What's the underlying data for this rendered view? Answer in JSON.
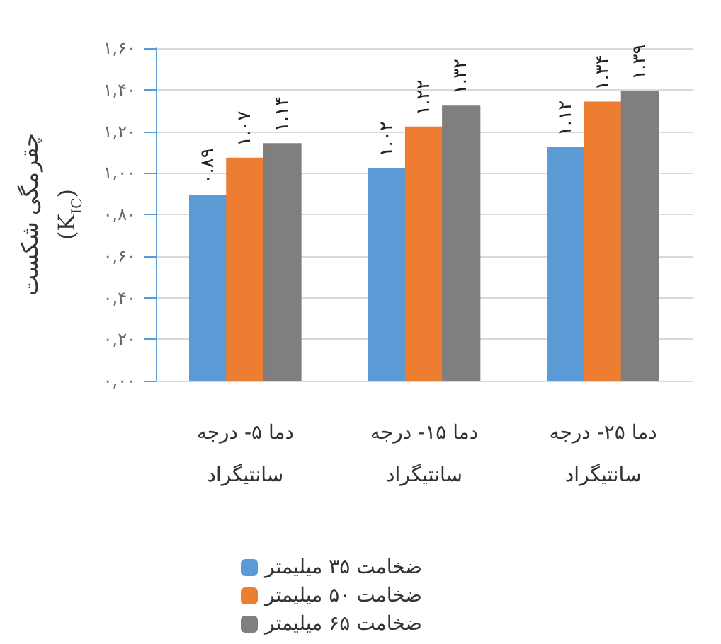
{
  "chart_data": {
    "type": "bar",
    "ylabel": "چقرمگی شکست\n(K$_{IC}$)",
    "categories": [
      "دما ۵- درجه سانتیگراد",
      "دما ۱۵- درجه سانتیگراد",
      "دما ۲۵- درجه سانتیگراد"
    ],
    "series": [
      {
        "name": "ضخامت ۳۵ میلیمتر",
        "color": "#5b9bd5",
        "values": [
          0.89,
          1.02,
          1.12
        ],
        "value_labels": [
          "۰.۸۹",
          "۱.۰۲",
          "۱.۱۲"
        ]
      },
      {
        "name": "ضخامت ۵۰ میلیمتر",
        "color": "#ed7d31",
        "values": [
          1.07,
          1.22,
          1.34
        ],
        "value_labels": [
          "۱.۰۷",
          "۱.۲۲",
          "۱.۳۴"
        ]
      },
      {
        "name": "ضخامت ۶۵ میلیمتر",
        "color": "#7f7f7f",
        "values": [
          1.14,
          1.32,
          1.39
        ],
        "value_labels": [
          "۱.۱۴",
          "۱.۳۲",
          "۱.۳۹"
        ]
      }
    ],
    "ylim": [
      0,
      1.6
    ],
    "yticks": [
      {
        "value": 0,
        "label": "۰,۰۰"
      },
      {
        "value": 0.2,
        "label": "۰,۲۰"
      },
      {
        "value": 0.4,
        "label": "۰,۴۰"
      },
      {
        "value": 0.6,
        "label": "۰,۶۰"
      },
      {
        "value": 0.8,
        "label": "۰,۸۰"
      },
      {
        "value": 1,
        "label": "۱,۰۰"
      },
      {
        "value": 1.2,
        "label": "۱,۲۰"
      },
      {
        "value": 1.4,
        "label": "۱,۴۰"
      },
      {
        "value": 1.6,
        "label": "۱,۶۰"
      }
    ],
    "grid": "y",
    "legend": "bottom left"
  }
}
